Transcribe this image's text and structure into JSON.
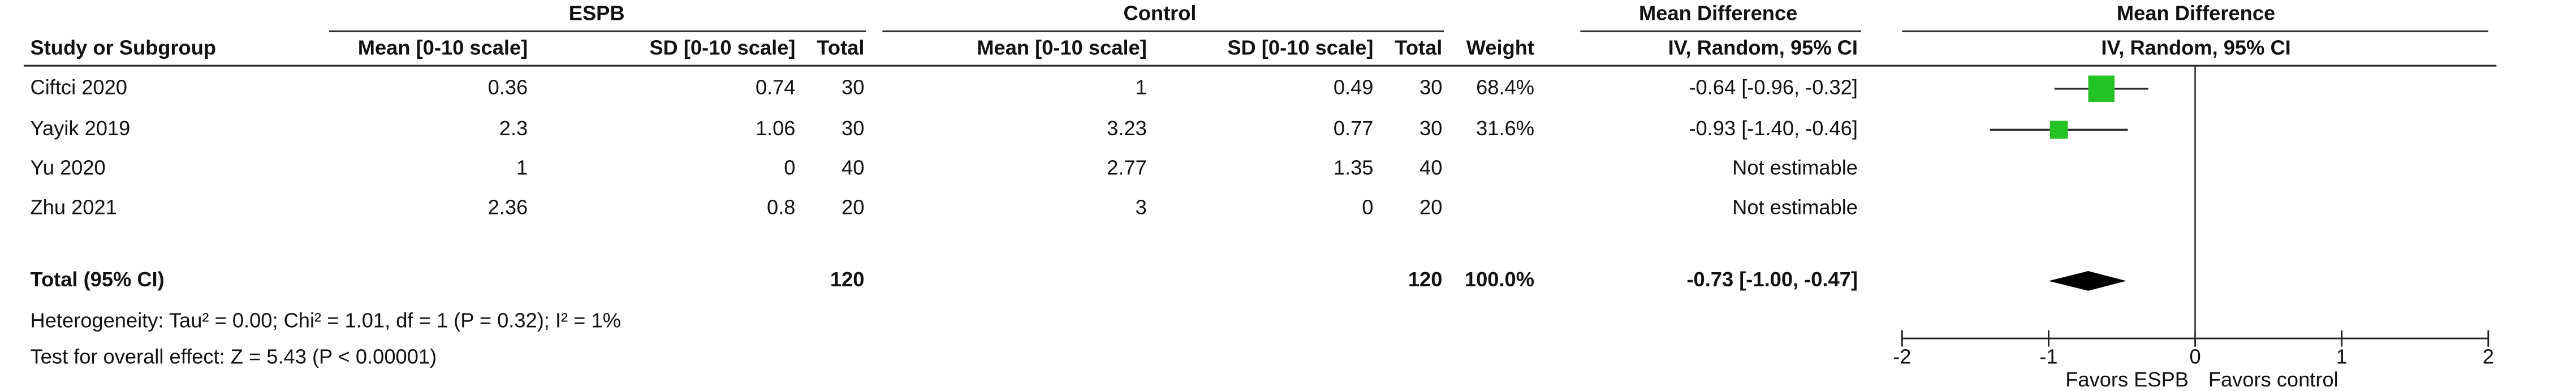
{
  "chart_data": {
    "type": "forest",
    "group_headers": {
      "espb": "ESPB",
      "control": "Control",
      "md_table": "Mean Difference",
      "md_plot": "Mean Difference"
    },
    "columns": [
      "Study or Subgroup",
      "Mean [0-10 scale]",
      "SD [0-10 scale]",
      "Total",
      "Mean [0-10 scale]",
      "SD [0-10 scale]",
      "Total",
      "Weight",
      "IV, Random, 95% CI",
      "IV, Random, 95% CI"
    ],
    "studies": [
      {
        "name": "Ciftci 2020",
        "espb_mean": 0.36,
        "espb_sd": 0.74,
        "espb_total": 30,
        "control_mean": 1,
        "control_sd": 0.49,
        "control_total": 30,
        "weight": 68.4,
        "weight_label": "68.4%",
        "md": -0.64,
        "ci": [
          -0.96,
          -0.32
        ],
        "ci_label": "-0.64 [-0.96, -0.32]"
      },
      {
        "name": "Yayik 2019",
        "espb_mean": 2.3,
        "espb_sd": 1.06,
        "espb_total": 30,
        "control_mean": 3.23,
        "control_sd": 0.77,
        "control_total": 30,
        "weight": 31.6,
        "weight_label": "31.6%",
        "md": -0.93,
        "ci": [
          -1.4,
          -0.46
        ],
        "ci_label": "-0.93 [-1.40, -0.46]"
      },
      {
        "name": "Yu 2020",
        "espb_mean": 1,
        "espb_sd": 0,
        "espb_total": 40,
        "control_mean": 2.77,
        "control_sd": 1.35,
        "control_total": 40,
        "weight": null,
        "weight_label": null,
        "md": null,
        "ci": null,
        "ci_label": "Not estimable"
      },
      {
        "name": "Zhu 2021",
        "espb_mean": 2.36,
        "espb_sd": 0.8,
        "espb_total": 20,
        "control_mean": 3,
        "control_sd": 0,
        "control_total": 20,
        "weight": null,
        "weight_label": null,
        "md": null,
        "ci": null,
        "ci_label": "Not estimable"
      }
    ],
    "total": {
      "name": "Total (95% CI)",
      "espb_total": 120,
      "control_total": 120,
      "weight": 100.0,
      "weight_label": "100.0%",
      "md": -0.73,
      "ci": [
        -1.0,
        -0.47
      ],
      "ci_label": "-0.73 [-1.00, -0.47]"
    },
    "heterogeneity": "Heterogeneity: Tau² = 0.00; Chi² = 1.01, df = 1 (P = 0.32); I² = 1%",
    "overall_effect": "Test for overall effect: Z = 5.43 (P < 0.00001)",
    "xlim": [
      -2,
      2
    ],
    "xticks": [
      -2,
      -1,
      0,
      1,
      2
    ],
    "x_left_label": "Favors ESPB",
    "x_right_label": "Favors control",
    "square_color": "#22c322",
    "diamond_color": "#000000"
  }
}
